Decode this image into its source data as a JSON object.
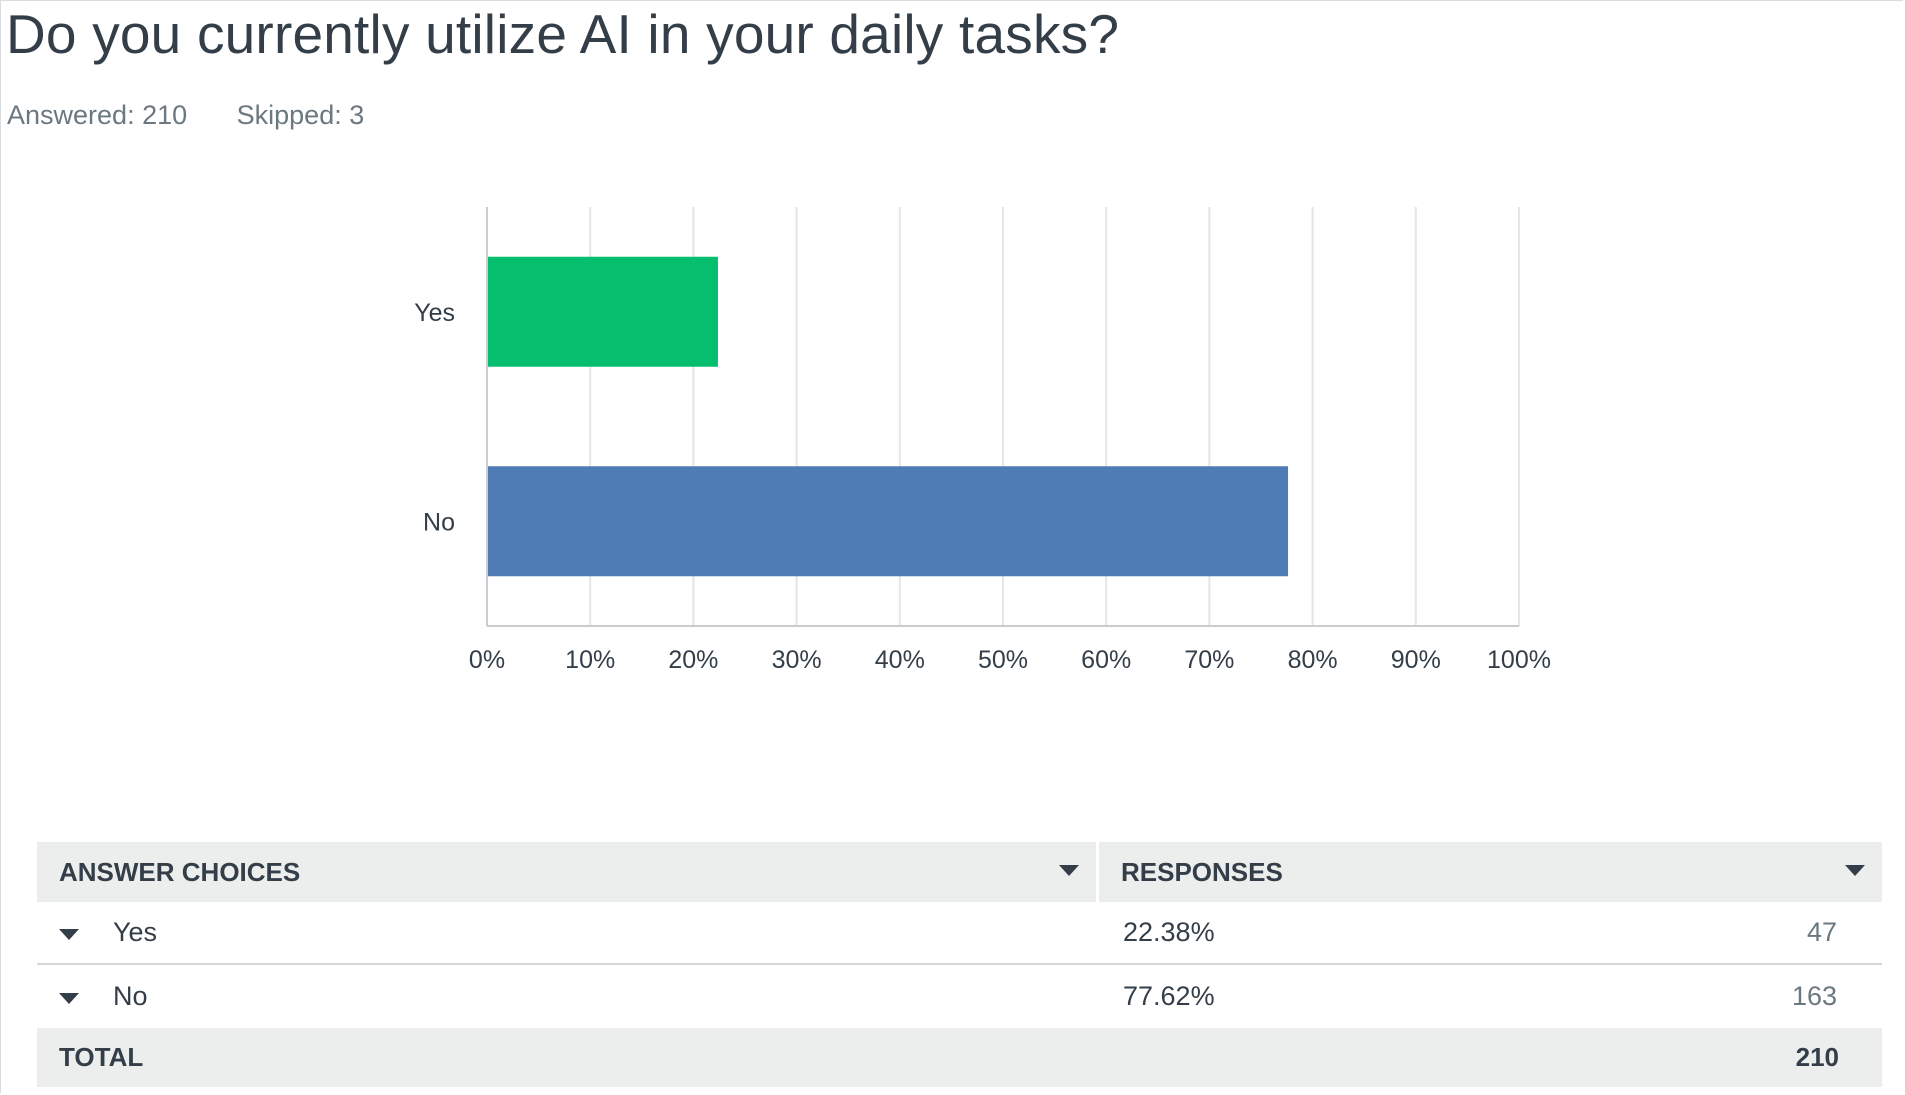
{
  "question": {
    "title": "Do you currently utilize AI in your daily tasks?",
    "answered_label": "Answered: 210",
    "skipped_label": "Skipped: 3"
  },
  "colors": {
    "yes_bar": "#05bf6e",
    "no_bar": "#507cb6",
    "gridline": "#e3e5e7",
    "axis": "#c9cdd0"
  },
  "chart_data": {
    "type": "bar",
    "orientation": "horizontal",
    "categories": [
      "Yes",
      "No"
    ],
    "values": [
      22.38,
      77.62
    ],
    "bar_colors": [
      "#05bf6e",
      "#507cb6"
    ],
    "xlim": [
      0,
      100
    ],
    "x_ticks": [
      "0%",
      "10%",
      "20%",
      "30%",
      "40%",
      "50%",
      "60%",
      "70%",
      "80%",
      "90%",
      "100%"
    ],
    "grid": true,
    "title": "",
    "xlabel": "",
    "ylabel": ""
  },
  "table": {
    "headers": {
      "choices": "ANSWER CHOICES",
      "responses": "RESPONSES"
    },
    "rows": [
      {
        "choice": "Yes",
        "percent": "22.38%",
        "count": "47"
      },
      {
        "choice": "No",
        "percent": "77.62%",
        "count": "163"
      }
    ],
    "total": {
      "label": "TOTAL",
      "count": "210"
    }
  }
}
